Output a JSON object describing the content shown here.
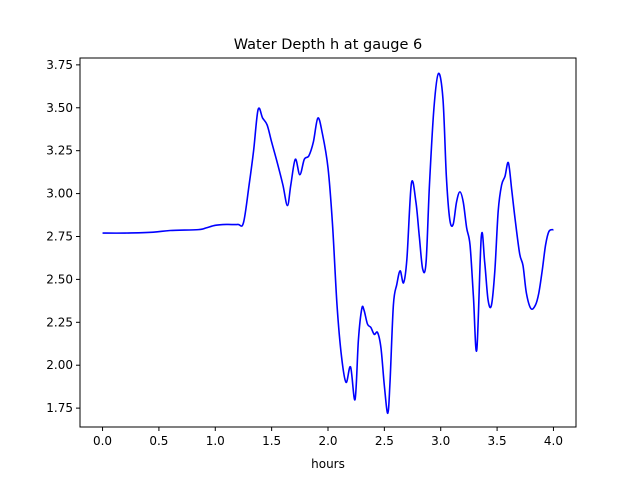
{
  "chart_data": {
    "type": "line",
    "title": "Water Depth h at gauge 6",
    "xlabel": "hours",
    "ylabel": "",
    "xlim": [
      -0.2,
      4.2
    ],
    "ylim": [
      1.64,
      3.79
    ],
    "grid": false,
    "legend": "none",
    "xticks": [
      0.0,
      0.5,
      1.0,
      1.5,
      2.0,
      2.5,
      3.0,
      3.5,
      4.0
    ],
    "xtick_labels": [
      "0.0",
      "0.5",
      "1.0",
      "1.5",
      "2.0",
      "2.5",
      "3.0",
      "3.5",
      "4.0"
    ],
    "yticks": [
      1.75,
      2.0,
      2.25,
      2.5,
      2.75,
      3.0,
      3.25,
      3.5,
      3.75
    ],
    "ytick_labels": [
      "1.75",
      "2.00",
      "2.25",
      "2.50",
      "2.75",
      "3.00",
      "3.25",
      "3.50",
      "3.75"
    ],
    "series": [
      {
        "color": "#0000ff",
        "x": [
          0.0,
          0.2,
          0.45,
          0.6,
          0.85,
          0.92,
          1.0,
          1.1,
          1.2,
          1.25,
          1.3,
          1.34,
          1.38,
          1.42,
          1.46,
          1.5,
          1.55,
          1.6,
          1.64,
          1.67,
          1.71,
          1.75,
          1.79,
          1.83,
          1.87,
          1.91,
          1.95,
          2.0,
          2.04,
          2.08,
          2.12,
          2.16,
          2.2,
          2.24,
          2.27,
          2.3,
          2.32,
          2.35,
          2.38,
          2.41,
          2.44,
          2.47,
          2.5,
          2.53,
          2.55,
          2.58,
          2.61,
          2.64,
          2.67,
          2.7,
          2.74,
          2.78,
          2.81,
          2.84,
          2.87,
          2.9,
          2.94,
          2.98,
          3.02,
          3.05,
          3.08,
          3.11,
          3.14,
          3.17,
          3.2,
          3.23,
          3.26,
          3.29,
          3.32,
          3.36,
          3.39,
          3.42,
          3.45,
          3.48,
          3.51,
          3.54,
          3.57,
          3.6,
          3.63,
          3.66,
          3.7,
          3.73,
          3.76,
          3.8,
          3.84,
          3.87,
          3.9,
          3.93,
          3.96,
          4.0
        ],
        "y": [
          2.77,
          2.77,
          2.775,
          2.785,
          2.79,
          2.8,
          2.815,
          2.82,
          2.82,
          2.83,
          3.05,
          3.25,
          3.49,
          3.44,
          3.4,
          3.3,
          3.18,
          3.05,
          2.93,
          3.05,
          3.2,
          3.11,
          3.2,
          3.22,
          3.3,
          3.44,
          3.35,
          3.15,
          2.82,
          2.35,
          2.05,
          1.9,
          1.99,
          1.8,
          2.15,
          2.33,
          2.32,
          2.24,
          2.22,
          2.18,
          2.19,
          2.1,
          1.88,
          1.72,
          1.9,
          2.35,
          2.47,
          2.55,
          2.48,
          2.62,
          3.06,
          2.95,
          2.75,
          2.56,
          2.6,
          3.05,
          3.5,
          3.7,
          3.55,
          3.1,
          2.85,
          2.82,
          2.95,
          3.01,
          2.95,
          2.8,
          2.7,
          2.4,
          2.09,
          2.75,
          2.6,
          2.38,
          2.35,
          2.55,
          2.9,
          3.05,
          3.1,
          3.18,
          3.02,
          2.85,
          2.65,
          2.58,
          2.42,
          2.33,
          2.35,
          2.42,
          2.55,
          2.7,
          2.78,
          2.79
        ]
      }
    ]
  }
}
